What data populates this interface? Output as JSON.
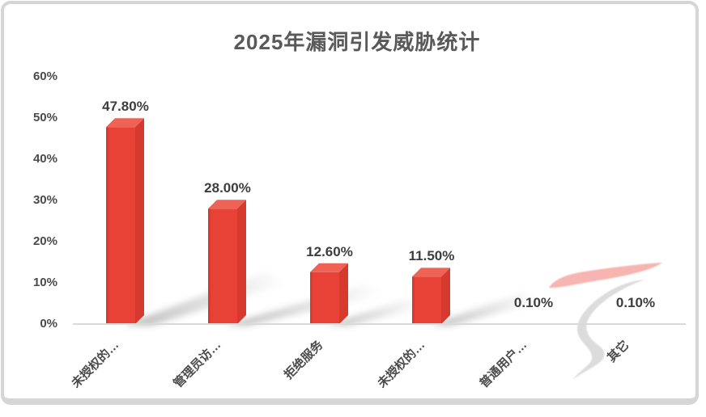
{
  "chart_data": {
    "type": "bar",
    "title": "2025年漏洞引发威胁统计",
    "categories": [
      "未授权的…",
      "管理员访…",
      "拒绝服务",
      "未授权的…",
      "普通用户…",
      "其它"
    ],
    "values": [
      47.8,
      28.0,
      12.6,
      11.5,
      0.1,
      0.1
    ],
    "value_labels": [
      "47.80%",
      "28.00%",
      "12.60%",
      "11.50%",
      "0.10%",
      "0.10%"
    ],
    "y_ticks": [
      "0%",
      "10%",
      "20%",
      "30%",
      "40%",
      "50%",
      "60%"
    ],
    "ylim": [
      0,
      60
    ],
    "xlabel": "",
    "ylabel": "",
    "grid": false,
    "legend": false,
    "colors": {
      "bar_front": "#e84135",
      "bar_top": "#ef6357",
      "bar_side": "#d63a2e",
      "bar_edge": "#c93529",
      "axis_line": "#d9d9d9",
      "title_text": "#595959",
      "label_text": "#3d3d3d",
      "pink_stroke": "#f6b5b0",
      "gray_swoosh": "#dcdcdc"
    }
  }
}
